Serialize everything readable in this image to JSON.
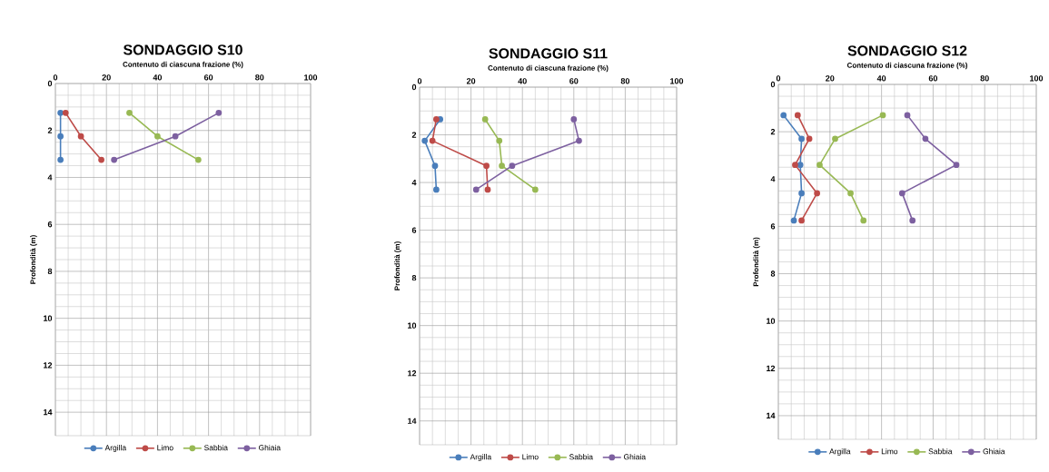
{
  "chart_data": [
    {
      "type": "line",
      "title": "SONDAGGIO S10",
      "xlabel": "Contenuto di ciascuna frazione (%)",
      "ylabel": "Profondità (m)",
      "xlim": [
        0,
        100
      ],
      "xticks": [
        0,
        20,
        40,
        60,
        80,
        100
      ],
      "ylim": [
        15,
        0
      ],
      "yticks": [
        0,
        2,
        4,
        6,
        8,
        10,
        12,
        14
      ],
      "grid": true,
      "legend": "bottom",
      "marker": "circle",
      "series": [
        {
          "name": "Argilla",
          "color": "#4a7ebb",
          "x": [
            2,
            2,
            2
          ],
          "values": [
            1.25,
            2.25,
            3.25
          ]
        },
        {
          "name": "Limo",
          "color": "#be4b48",
          "x": [
            4,
            10,
            18
          ],
          "values": [
            1.25,
            2.25,
            3.25
          ]
        },
        {
          "name": "Sabbia",
          "color": "#98b954",
          "x": [
            29,
            40,
            56
          ],
          "values": [
            1.25,
            2.25,
            3.25
          ]
        },
        {
          "name": "Ghiaia",
          "color": "#7d60a0",
          "x": [
            64,
            47,
            23
          ],
          "values": [
            1.25,
            2.25,
            3.25
          ]
        }
      ]
    },
    {
      "type": "line",
      "title": "SONDAGGIO S11",
      "xlabel": "Contenuto di ciascuna frazione (%)",
      "ylabel": "Profondità (m)",
      "xlim": [
        0,
        100
      ],
      "xticks": [
        0,
        20,
        40,
        60,
        80,
        100
      ],
      "ylim": [
        15,
        0
      ],
      "yticks": [
        0,
        2,
        4,
        6,
        8,
        10,
        12,
        14
      ],
      "grid": true,
      "legend": "bottom",
      "marker": "circle",
      "series": [
        {
          "name": "Argilla",
          "color": "#4a7ebb",
          "x": [
            8,
            2,
            6,
            6.5
          ],
          "values": [
            1.35,
            2.25,
            3.3,
            4.3
          ]
        },
        {
          "name": "Limo",
          "color": "#be4b48",
          "x": [
            6.5,
            5,
            26,
            26.5
          ],
          "values": [
            1.35,
            2.25,
            3.3,
            4.3
          ]
        },
        {
          "name": "Sabbia",
          "color": "#98b954",
          "x": [
            25.5,
            31,
            32,
            45
          ],
          "values": [
            1.35,
            2.25,
            3.3,
            4.3
          ]
        },
        {
          "name": "Ghiaia",
          "color": "#7d60a0",
          "x": [
            60,
            62,
            36,
            22
          ],
          "values": [
            1.35,
            2.25,
            3.3,
            4.3
          ]
        }
      ]
    },
    {
      "type": "line",
      "title": "SONDAGGIO S12",
      "xlabel": "Contenuto di ciascuna frazione (%)",
      "ylabel": "Profondità (m)",
      "xlim": [
        0,
        100
      ],
      "xticks": [
        0,
        20,
        40,
        60,
        80,
        100
      ],
      "ylim": [
        15,
        0
      ],
      "yticks": [
        0,
        2,
        4,
        6,
        8,
        10,
        12,
        14
      ],
      "grid": true,
      "legend": "bottom",
      "marker": "circle",
      "series": [
        {
          "name": "Argilla",
          "color": "#4a7ebb",
          "x": [
            2,
            9,
            8.5,
            9,
            6
          ],
          "values": [
            1.3,
            2.3,
            3.4,
            4.6,
            5.75
          ]
        },
        {
          "name": "Limo",
          "color": "#be4b48",
          "x": [
            7.5,
            12,
            6.5,
            15,
            9
          ],
          "values": [
            1.3,
            2.3,
            3.4,
            4.6,
            5.75
          ]
        },
        {
          "name": "Sabbia",
          "color": "#98b954",
          "x": [
            40.5,
            22,
            16,
            28,
            33
          ],
          "values": [
            1.3,
            2.3,
            3.4,
            4.6,
            5.75
          ]
        },
        {
          "name": "Ghiaia",
          "color": "#7d60a0",
          "x": [
            50,
            57,
            69,
            48,
            52
          ],
          "values": [
            1.3,
            2.3,
            3.4,
            4.6,
            5.75
          ]
        }
      ]
    }
  ]
}
